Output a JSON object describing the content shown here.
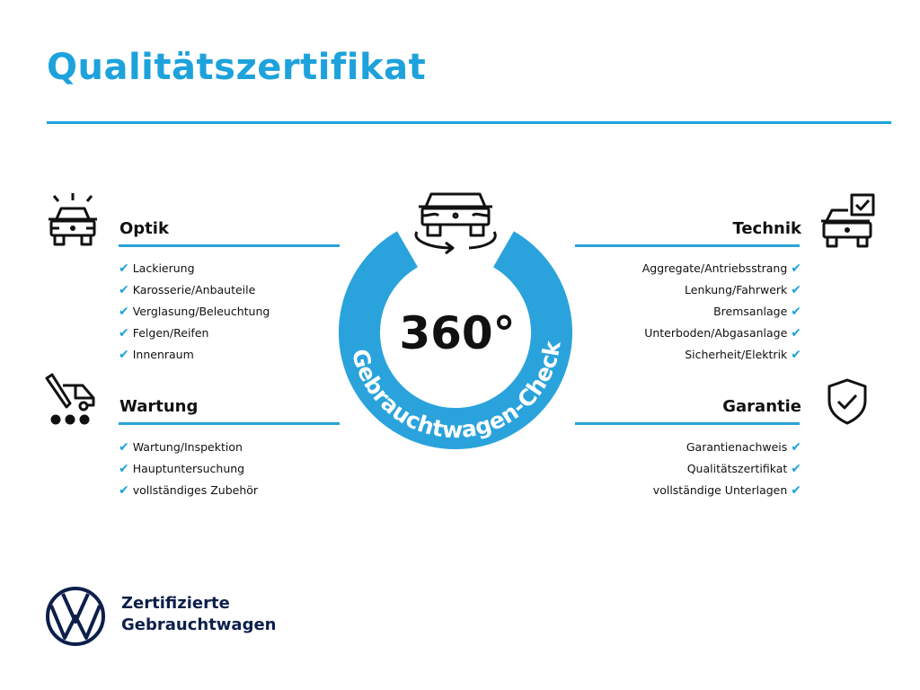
{
  "title": "Qualitätszertifikat",
  "colors": {
    "accent": "#1da2dc",
    "brand": "#0d1f4a"
  },
  "center": {
    "degrees": "360°",
    "ring_text": "Gebrauchtwagen-Check",
    "icon": "car-rotate-icon"
  },
  "sections": {
    "optik": {
      "title": "Optik",
      "icon": "car-lights-icon",
      "items": [
        "Lackierung",
        "Karosserie/Anbauteile",
        "Verglasung/Beleuchtung",
        "Felgen/Reifen",
        "Innenraum"
      ]
    },
    "wartung": {
      "title": "Wartung",
      "icon": "service-van-icon",
      "items": [
        "Wartung/Inspektion",
        "Hauptuntersuchung",
        "vollständiges Zubehör"
      ]
    },
    "technik": {
      "title": "Technik",
      "icon": "car-checkbox-icon",
      "items": [
        "Aggregate/Antriebsstrang",
        "Lenkung/Fahrwerk",
        "Bremsanlage",
        "Unterboden/Abgasanlage",
        "Sicherheit/Elektrik"
      ]
    },
    "garantie": {
      "title": "Garantie",
      "icon": "shield-check-icon",
      "items": [
        "Garantienachweis",
        "Qualitätszertifikat",
        "vollständige Unterlagen"
      ]
    }
  },
  "brand": {
    "line1": "Zertifizierte",
    "line2": "Gebrauchtwagen",
    "logo": "VW"
  },
  "check": "✔"
}
